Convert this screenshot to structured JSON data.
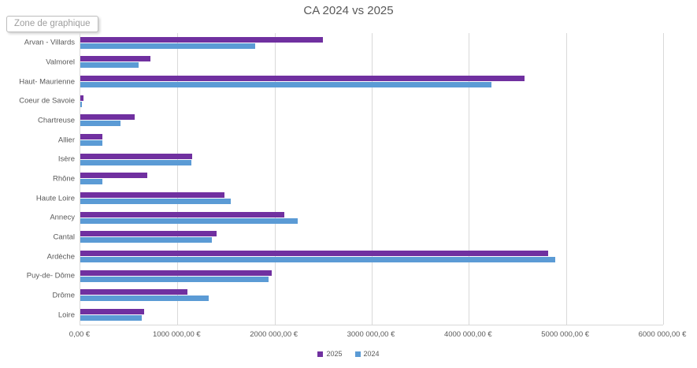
{
  "tooltip": {
    "label": "Zone de graphique"
  },
  "chart_data": {
    "type": "bar",
    "orientation": "horizontal",
    "title": "CA 2024 vs 2025",
    "categories": [
      "Arvan - Villards",
      "Valmorel",
      "Haut- Maurienne",
      "Coeur de Savoie",
      "Chartreuse",
      "Allier",
      "Isère",
      "Rhône",
      "Haute Loire",
      "Annecy",
      "Cantal",
      "Ardèche",
      "Puy-de- Dôme",
      "Drôme",
      "Loire"
    ],
    "series": [
      {
        "name": "2025",
        "color": "#7030A0",
        "values": [
          2500000,
          720000,
          4570000,
          30000,
          560000,
          230000,
          1150000,
          690000,
          1480000,
          2100000,
          1400000,
          4820000,
          1970000,
          1100000,
          660000
        ]
      },
      {
        "name": "2024",
        "color": "#5B9BD5",
        "values": [
          1800000,
          600000,
          4230000,
          20000,
          415000,
          225000,
          1140000,
          230000,
          1550000,
          2240000,
          1350000,
          4890000,
          1940000,
          1325000,
          630000
        ]
      }
    ],
    "x_ticks": [
      "0,00 €",
      "1000 000,00 €",
      "2000 000,00 €",
      "3000 000,00 €",
      "4000 000,00 €",
      "5000 000,00 €",
      "6000 000,00 €"
    ],
    "xlim": [
      0,
      6000000
    ],
    "grid": true,
    "legend_position": "bottom"
  },
  "colors": {
    "gridline": "#D9D9D9",
    "axis_text": "#595959",
    "title_text": "#595959",
    "series_2025": "#7030A0",
    "series_2024": "#5B9BD5"
  }
}
